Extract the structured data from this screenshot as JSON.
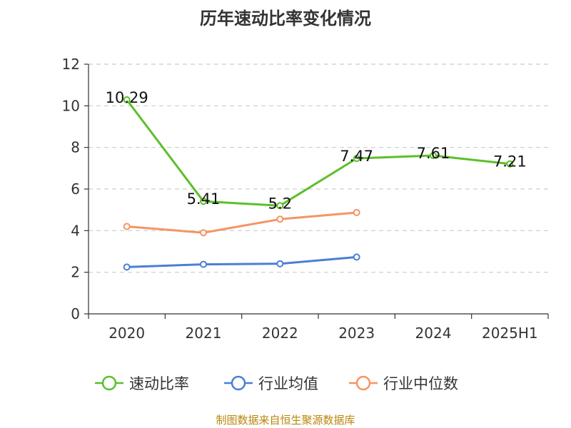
{
  "title": "历年速动比率变化情况",
  "source": "制图数据来自恒生聚源数据库",
  "chart_data": {
    "type": "line",
    "categories": [
      "2020",
      "2021",
      "2022",
      "2023",
      "2024",
      "2025H1"
    ],
    "ylim": [
      0,
      12
    ],
    "yticks": [
      0,
      2,
      4,
      6,
      8,
      10,
      12
    ],
    "grid": true,
    "legend_position": "bottom",
    "series": [
      {
        "name": "速动比率",
        "color": "#5cbf2a",
        "values": [
          10.29,
          5.41,
          5.2,
          7.47,
          7.61,
          7.21
        ],
        "labels": [
          "10.29",
          "5.41",
          "5.2",
          "7.47",
          "7.61",
          "7.21"
        ]
      },
      {
        "name": "行业均值",
        "color": "#4a7fd6",
        "values": [
          2.25,
          2.38,
          2.41,
          2.73,
          null,
          null
        ]
      },
      {
        "name": "行业中位数",
        "color": "#f59563",
        "values": [
          4.2,
          3.9,
          4.55,
          4.87,
          null,
          null
        ]
      }
    ]
  }
}
